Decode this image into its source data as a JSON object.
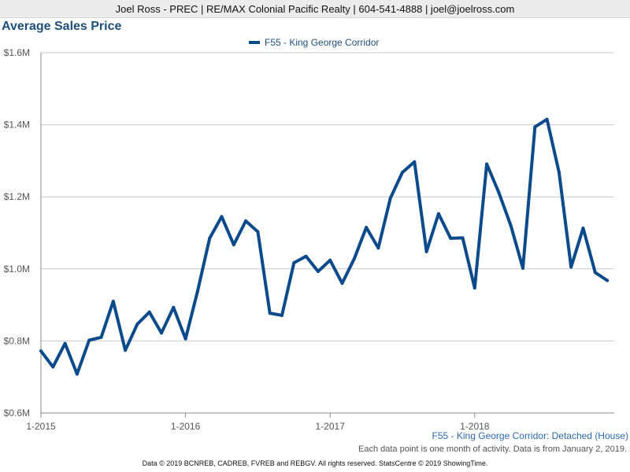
{
  "header": {
    "text": "Joel Ross - PREC | RE/MAX Colonial Pacific Realty | 604-541-4888 | joel@joelross.com"
  },
  "chart_data": {
    "type": "line",
    "title": "Average Sales Price",
    "legend_position": "top-center",
    "grid": true,
    "y_ticks": [
      {
        "value": 0.6,
        "label": "$0.6M"
      },
      {
        "value": 0.8,
        "label": "$0.8M"
      },
      {
        "value": 1.0,
        "label": "$1.0M"
      },
      {
        "value": 1.2,
        "label": "$1.2M"
      },
      {
        "value": 1.4,
        "label": "$1.4M"
      },
      {
        "value": 1.6,
        "label": "$1.6M"
      }
    ],
    "ylim": [
      0.6,
      1.6
    ],
    "x_ticks": [
      {
        "index": 0,
        "label": "1-2015"
      },
      {
        "index": 12,
        "label": "1-2016"
      },
      {
        "index": 24,
        "label": "1-2017"
      },
      {
        "index": 36,
        "label": "1-2018"
      }
    ],
    "series": [
      {
        "name": "F55 - King George Corridor",
        "color": "#0b4a8b",
        "values": [
          0.772,
          0.728,
          0.793,
          0.708,
          0.802,
          0.81,
          0.91,
          0.774,
          0.847,
          0.88,
          0.822,
          0.893,
          0.806,
          0.938,
          1.085,
          1.145,
          1.067,
          1.133,
          1.103,
          0.877,
          0.871,
          1.017,
          1.035,
          0.993,
          1.024,
          0.96,
          1.028,
          1.115,
          1.058,
          1.196,
          1.268,
          1.297,
          1.048,
          1.153,
          1.085,
          1.086,
          0.947,
          1.291,
          1.212,
          1.12,
          1.002,
          1.394,
          1.415,
          1.268,
          1.005,
          1.113,
          0.99,
          0.968
        ]
      }
    ]
  },
  "subtitle": "F55 - King George Corridor: Detached (House)",
  "note": "Each data point is one month of activity. Data is from January 2, 2019.",
  "footer": "Data © 2019 BCNREB, CADREB, FVREB and REBGV. All rights reserved. StatsCentre © 2019 ShowingTime."
}
